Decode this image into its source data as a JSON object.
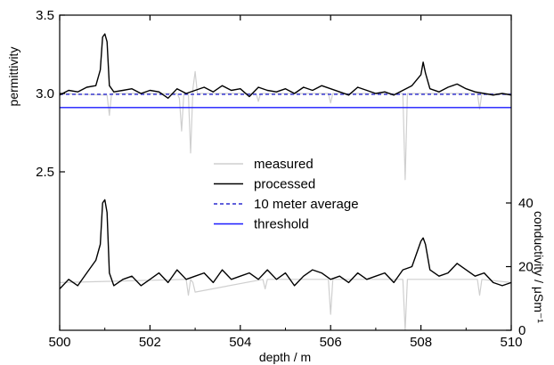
{
  "chart_data": {
    "type": "line",
    "title": "",
    "xlabel": "depth / m",
    "ylabel_left": "permittivity",
    "ylabel_right": "conductivity / μSm⁻¹",
    "xlim": [
      500,
      510
    ],
    "x_ticks": [
      500,
      502,
      504,
      506,
      508,
      510
    ],
    "y_left_ticks": [
      2.5,
      3.0,
      3.5
    ],
    "y_left_tick_labels": [
      "2.5",
      "3.0",
      "3.5"
    ],
    "y_right_ticks": [
      0,
      20,
      40
    ],
    "y_right_tick_labels": [
      "0",
      "20",
      "40"
    ],
    "grid": false,
    "legend_position": "center",
    "legend": [
      {
        "label": "measured",
        "color": "#cfcfcf",
        "style": "solid"
      },
      {
        "label": "processed",
        "color": "#000000",
        "style": "solid"
      },
      {
        "label": "10 meter average",
        "color": "#2b2bd0",
        "style": "dashed"
      },
      {
        "label": "threshold",
        "color": "#1a1aff",
        "style": "solid"
      }
    ],
    "series": [
      {
        "name": "processed",
        "axis": "left",
        "color": "#000000",
        "x": [
          500.0,
          500.2,
          500.4,
          500.6,
          500.8,
          500.9,
          500.95,
          501.0,
          501.05,
          501.1,
          501.2,
          501.4,
          501.6,
          501.8,
          502.0,
          502.2,
          502.4,
          502.6,
          502.8,
          503.0,
          503.2,
          503.4,
          503.6,
          503.8,
          504.0,
          504.2,
          504.4,
          504.6,
          504.8,
          505.0,
          505.2,
          505.4,
          505.6,
          505.8,
          506.0,
          506.2,
          506.4,
          506.6,
          506.8,
          507.0,
          507.2,
          507.4,
          507.6,
          507.8,
          508.0,
          508.05,
          508.1,
          508.2,
          508.4,
          508.6,
          508.8,
          509.0,
          509.2,
          509.4,
          509.6,
          509.8,
          510.0
        ],
        "y": [
          2.99,
          3.02,
          3.01,
          3.04,
          3.05,
          3.15,
          3.36,
          3.38,
          3.33,
          3.05,
          3.01,
          3.02,
          3.03,
          3.0,
          3.02,
          3.01,
          2.97,
          3.03,
          3.0,
          3.02,
          3.04,
          3.01,
          3.05,
          3.02,
          3.03,
          2.98,
          3.04,
          3.02,
          3.01,
          3.03,
          3.0,
          3.04,
          3.02,
          3.05,
          3.03,
          3.01,
          2.99,
          3.04,
          3.02,
          3.0,
          3.01,
          2.99,
          3.02,
          3.05,
          3.12,
          3.2,
          3.13,
          3.03,
          3.01,
          3.04,
          3.06,
          3.03,
          3.01,
          3.0,
          2.99,
          3.0,
          2.99
        ]
      },
      {
        "name": "measured",
        "axis": "left",
        "color": "#cfcfcf",
        "x": [
          500.0,
          501.05,
          501.1,
          501.15,
          502.6,
          502.65,
          502.7,
          502.75,
          502.85,
          502.9,
          502.95,
          503.0,
          503.05,
          504.35,
          504.4,
          504.45,
          505.95,
          506.0,
          506.05,
          507.6,
          507.65,
          507.7,
          509.25,
          509.3,
          509.35,
          510.0
        ],
        "y": [
          3.0,
          2.99,
          2.86,
          3.0,
          3.0,
          2.97,
          2.76,
          3.0,
          3.0,
          2.62,
          3.03,
          3.14,
          3.0,
          3.0,
          2.95,
          3.0,
          3.0,
          2.94,
          3.0,
          3.0,
          2.45,
          3.0,
          3.0,
          2.9,
          3.0,
          3.0
        ]
      },
      {
        "name": "10 meter average",
        "axis": "left",
        "color": "#2b2bd0",
        "x": [
          500,
          510
        ],
        "y": [
          2.995,
          2.995
        ]
      },
      {
        "name": "threshold",
        "axis": "left",
        "color": "#1a1aff",
        "x": [
          500,
          510
        ],
        "y": [
          2.91,
          2.91
        ]
      },
      {
        "name": "processed",
        "axis": "right",
        "color": "#000000",
        "x": [
          500.0,
          500.2,
          500.4,
          500.6,
          500.8,
          500.9,
          500.95,
          501.0,
          501.05,
          501.1,
          501.2,
          501.4,
          501.6,
          501.8,
          502.0,
          502.2,
          502.4,
          502.6,
          502.8,
          503.0,
          503.2,
          503.4,
          503.6,
          503.8,
          504.0,
          504.2,
          504.4,
          504.6,
          504.8,
          505.0,
          505.2,
          505.4,
          505.6,
          505.8,
          506.0,
          506.2,
          506.4,
          506.6,
          506.8,
          507.0,
          507.2,
          507.4,
          507.6,
          507.8,
          508.0,
          508.05,
          508.1,
          508.2,
          508.4,
          508.6,
          508.8,
          509.0,
          509.2,
          509.4,
          509.6,
          509.8,
          510.0
        ],
        "y": [
          13,
          16,
          14,
          18,
          22,
          27,
          40,
          41,
          37,
          18,
          14,
          16,
          17,
          14,
          16,
          18,
          15,
          19,
          16,
          17,
          18,
          15,
          19,
          16,
          17,
          18,
          16,
          19,
          16,
          18,
          14,
          17,
          19,
          18,
          16,
          17,
          15,
          18,
          16,
          17,
          18,
          15,
          19,
          20,
          28,
          29,
          27,
          19,
          17,
          18,
          21,
          19,
          17,
          18,
          15,
          14,
          15
        ]
      },
      {
        "name": "measured",
        "axis": "right",
        "color": "#cfcfcf",
        "x": [
          500.0,
          502.8,
          502.85,
          502.9,
          502.95,
          503.0,
          504.5,
          504.55,
          504.6,
          505.95,
          506.0,
          506.05,
          507.6,
          507.65,
          507.7,
          509.25,
          509.3,
          509.35,
          510.0
        ],
        "y": [
          15,
          16,
          11,
          16,
          15,
          12,
          16,
          13,
          16,
          16,
          5,
          16,
          16,
          0,
          16,
          16,
          11,
          16,
          15
        ]
      }
    ]
  }
}
